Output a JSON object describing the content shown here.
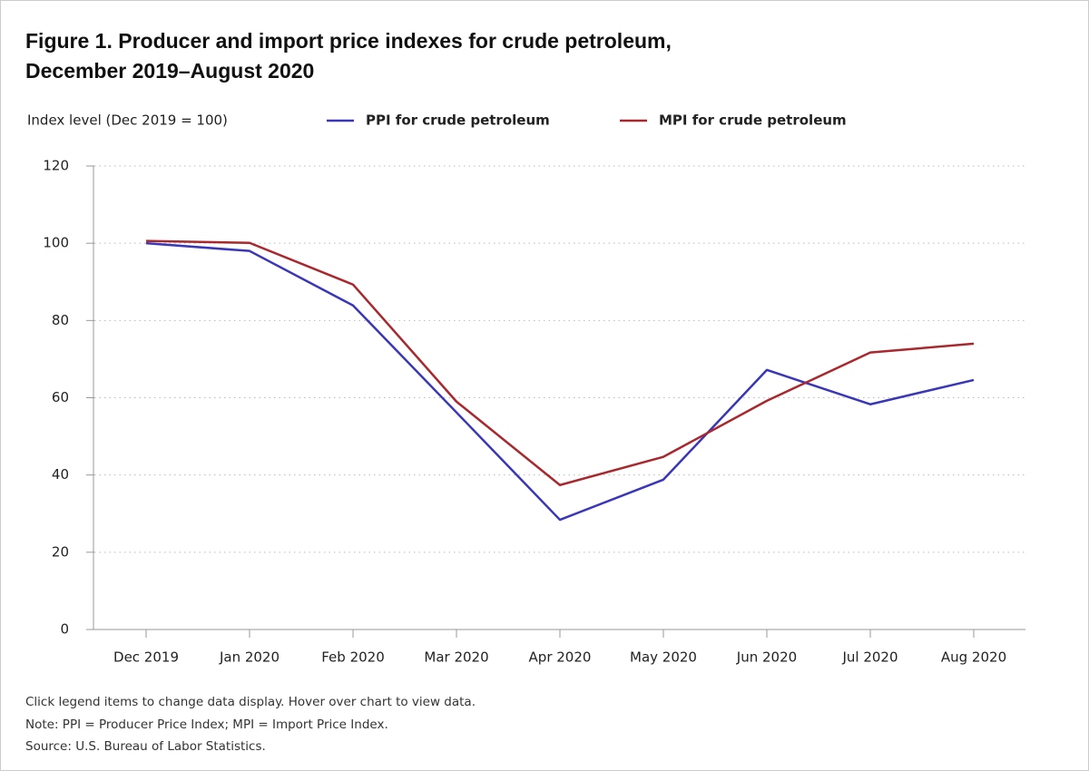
{
  "chart_data": {
    "type": "line",
    "title": "Figure 1. Producer and import price indexes for crude petroleum, December 2019–August 2020",
    "y_label": "Index level (Dec 2019 = 100)",
    "categories": [
      "Dec 2019",
      "Jan 2020",
      "Feb 2020",
      "Mar 2020",
      "Apr 2020",
      "May 2020",
      "Jun 2020",
      "Jul 2020",
      "Aug 2020"
    ],
    "series": [
      {
        "name": "PPI for crude petroleum",
        "color": "#3a36b8",
        "values": [
          100,
          98.0,
          83.9,
          56.2,
          28.4,
          38.8,
          67.2,
          58.3,
          64.6
        ]
      },
      {
        "name": "MPI for crude petroleum",
        "color": "#a8282e",
        "values": [
          100.6,
          100.1,
          89.3,
          59.0,
          37.4,
          44.7,
          59.2,
          71.7,
          74.0
        ]
      }
    ],
    "ylim": [
      0,
      120
    ],
    "yticks": [
      0,
      20,
      40,
      60,
      80,
      100,
      120
    ],
    "grid": true,
    "notes": [
      "Click legend items to change data display. Hover over chart to view data.",
      "Note: PPI = Producer Price Index; MPI = Import Price Index.",
      "Source: U.S. Bureau of Labor Statistics."
    ]
  }
}
